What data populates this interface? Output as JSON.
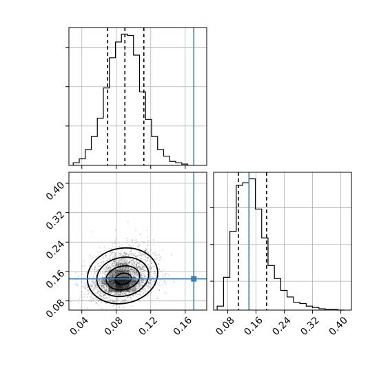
{
  "chart_data": {
    "type": "corner",
    "parameters": [
      "",
      ""
    ],
    "truth": {
      "p1": 0.17,
      "p2": 0.14,
      "color": "#3a7fb5"
    },
    "quantiles": {
      "p1": [
        0.07,
        0.09,
        0.112
      ],
      "p2": [
        0.11,
        0.14,
        0.19
      ]
    },
    "panels": [
      {
        "id": "hist_p1",
        "type": "histogram",
        "xlim": [
          0.025,
          0.185
        ],
        "ylim": [
          0,
          1.05
        ],
        "grid": true,
        "bin_edges": [
          0.03,
          0.037,
          0.044,
          0.051,
          0.058,
          0.065,
          0.072,
          0.079,
          0.086,
          0.093,
          0.1,
          0.107,
          0.114,
          0.121,
          0.128,
          0.135,
          0.142,
          0.149,
          0.156,
          0.163
        ],
        "values": [
          0.02,
          0.05,
          0.12,
          0.22,
          0.36,
          0.59,
          0.82,
          0.94,
          1.0,
          0.99,
          0.84,
          0.56,
          0.35,
          0.22,
          0.12,
          0.07,
          0.03,
          0.02,
          0.01
        ]
      },
      {
        "id": "scatter_p1_p2",
        "type": "scatter_contour",
        "xlim": [
          0.025,
          0.185
        ],
        "ylim": [
          0.055,
          0.43
        ],
        "xticks": [
          "0.04",
          "0.08",
          "0.12",
          "0.16"
        ],
        "xtick_values": [
          0.04,
          0.08,
          0.12,
          0.16
        ],
        "yticks": [
          "0.08",
          "0.16",
          "0.24",
          "0.32",
          "0.40"
        ],
        "ytick_values": [
          0.08,
          0.16,
          0.24,
          0.32,
          0.4
        ],
        "grid": true,
        "center": [
          0.087,
          0.135
        ],
        "spread": [
          0.018,
          0.045
        ],
        "correlation": 0.25,
        "contour_levels_sigma": [
          0.5,
          1.0,
          1.5,
          2.0
        ]
      },
      {
        "id": "hist_p2",
        "type": "histogram",
        "xlim": [
          0.04,
          0.43
        ],
        "ylim": [
          0,
          1.05
        ],
        "xticks": [
          "0.08",
          "0.16",
          "0.24",
          "0.32",
          "0.40"
        ],
        "xtick_values": [
          0.08,
          0.16,
          0.24,
          0.32,
          0.4
        ],
        "grid": true,
        "bin_edges": [
          0.05,
          0.068,
          0.086,
          0.104,
          0.122,
          0.14,
          0.158,
          0.176,
          0.194,
          0.212,
          0.23,
          0.248,
          0.266,
          0.284,
          0.302,
          0.32,
          0.338,
          0.356,
          0.374,
          0.392,
          0.41
        ],
        "values": [
          0.03,
          0.25,
          0.6,
          0.95,
          0.97,
          1.0,
          0.77,
          0.55,
          0.34,
          0.24,
          0.15,
          0.1,
          0.06,
          0.05,
          0.03,
          0.02,
          0.01,
          0.005,
          0.005,
          0.0
        ]
      }
    ]
  }
}
